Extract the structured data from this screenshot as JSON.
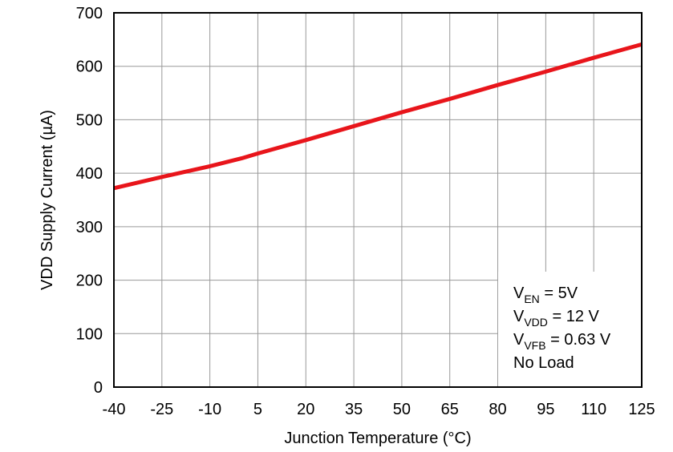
{
  "chart_data": {
    "type": "line",
    "x_label": "Junction Temperature (°C)",
    "y_label": "VDD Supply Current (µA)",
    "x": [
      -40,
      -25,
      -10,
      0,
      5,
      20,
      35,
      50,
      65,
      80,
      95,
      110,
      125
    ],
    "series": [
      {
        "color": "#e8151b",
        "values": [
          372,
          393,
          413,
          428,
          437,
          462,
          488,
          514,
          539,
          565,
          590,
          616,
          641
        ]
      }
    ],
    "xlim": [
      -40,
      125
    ],
    "xticks": [
      -40,
      -25,
      -10,
      5,
      20,
      35,
      50,
      65,
      80,
      95,
      110,
      125
    ],
    "ylim": [
      0,
      700
    ],
    "yticks": [
      0,
      100,
      200,
      300,
      400,
      500,
      600,
      700
    ],
    "grid": true,
    "annotations": [
      {
        "base": "V",
        "sub": "EN",
        "rest": " = 5V"
      },
      {
        "base": "V",
        "sub": "VDD",
        "rest": " = 12 V"
      },
      {
        "base": "V",
        "sub": "VFB",
        "rest": " = 0.63 V"
      },
      {
        "base": "No Load"
      }
    ]
  }
}
